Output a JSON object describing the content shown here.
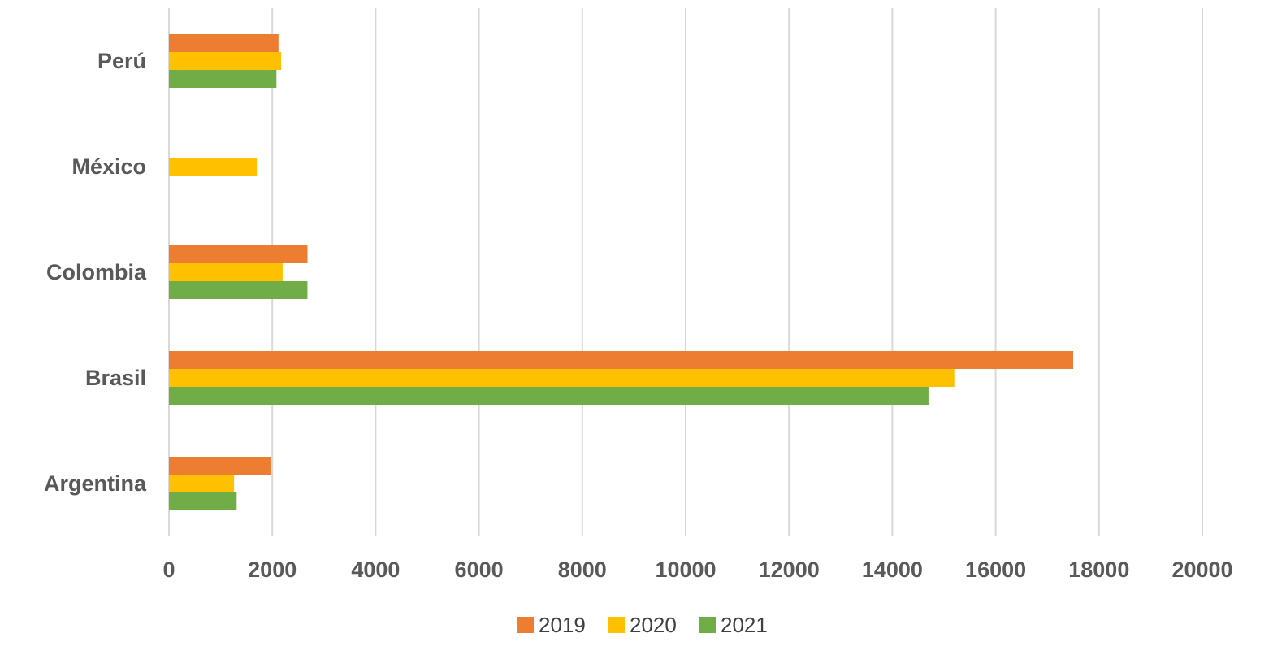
{
  "chart_data": {
    "type": "bar",
    "orientation": "horizontal",
    "categories": [
      "Argentina",
      "Brasil",
      "Colombia",
      "México",
      "Perú"
    ],
    "series": [
      {
        "name": "2019",
        "color": "#ED7D31",
        "values": [
          1980,
          17500,
          2680,
          0,
          2120
        ]
      },
      {
        "name": "2020",
        "color": "#FFC000",
        "values": [
          1260,
          15200,
          2200,
          1700,
          2170
        ]
      },
      {
        "name": "2021",
        "color": "#70AD47",
        "values": [
          1310,
          14700,
          2680,
          0,
          2080
        ]
      }
    ],
    "xlim": [
      0,
      20000
    ],
    "xticks": [
      0,
      2000,
      4000,
      6000,
      8000,
      10000,
      12000,
      14000,
      16000,
      18000,
      20000
    ],
    "grid": "vertical",
    "legend": "bottom"
  }
}
